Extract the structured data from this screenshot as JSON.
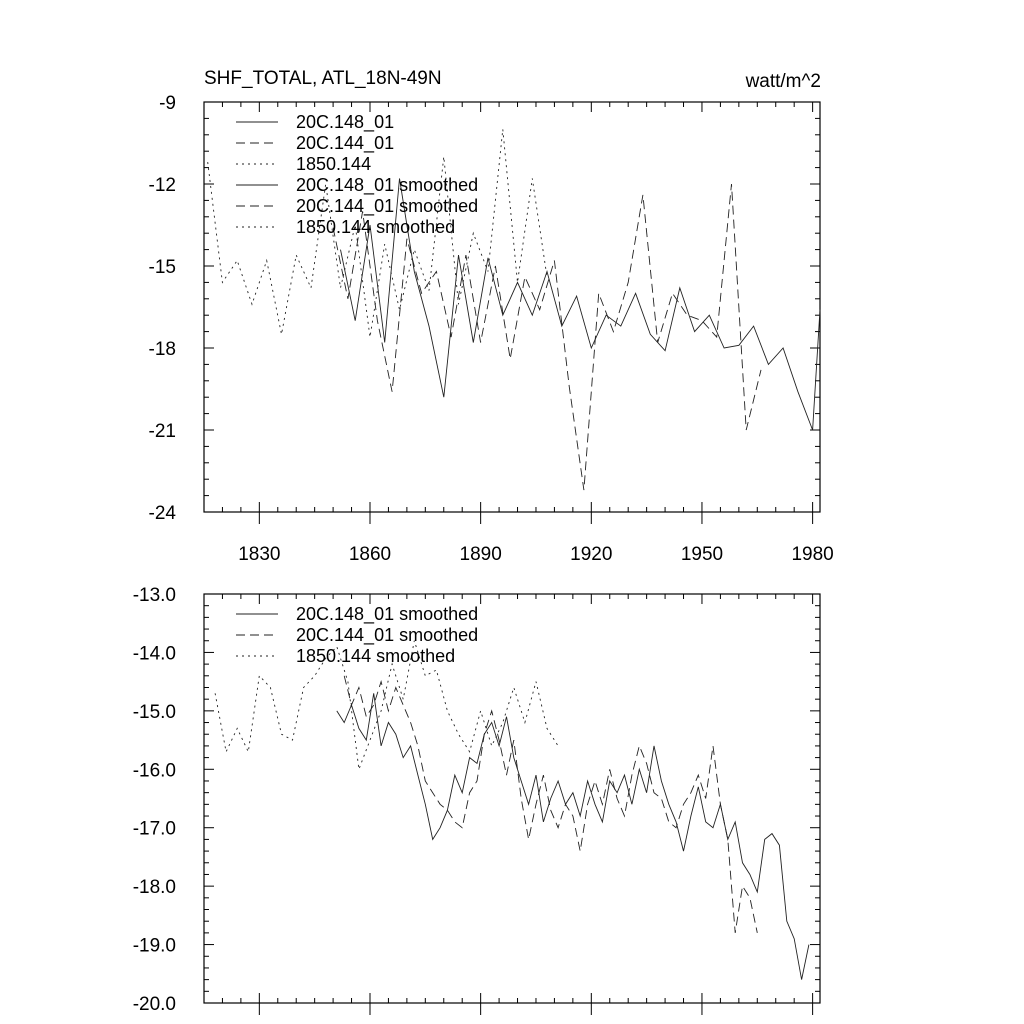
{
  "chart_data": [
    {
      "type": "line",
      "title": "SHF_TOTAL, ATL_18N-49N",
      "units": "watt/m^2",
      "xlim": [
        1815,
        1982
      ],
      "ylim": [
        -24,
        -9
      ],
      "x_ticks": [
        1830,
        1860,
        1890,
        1920,
        1950,
        1980
      ],
      "y_ticks": [
        -9,
        -12,
        -15,
        -18,
        -21,
        -24
      ],
      "x_tick_labels": [
        "1830",
        "1860",
        "1890",
        "1920",
        "1950",
        "1980"
      ],
      "y_tick_labels": [
        "-9",
        "-12",
        "-15",
        "-18",
        "-21",
        "-24"
      ],
      "legend": {
        "placement": "top-left",
        "entries": [
          "20C.148_01",
          "20C.144_01",
          "1850.144",
          "20C.148_01 smoothed",
          "20C.144_01 smoothed",
          "1850.144 smoothed"
        ]
      },
      "series": [
        {
          "name": "20C.148_01",
          "style": "solid",
          "x": [
            1852,
            1856,
            1860,
            1864,
            1868,
            1872,
            1876,
            1880,
            1884,
            1888,
            1892,
            1896,
            1900,
            1904,
            1908,
            1912,
            1916,
            1920,
            1924,
            1928,
            1932,
            1936,
            1940,
            1944,
            1948,
            1952,
            1956,
            1960,
            1964,
            1968,
            1972,
            1976,
            1980,
            1982
          ],
          "y": [
            -14.4,
            -17.0,
            -13.5,
            -17.8,
            -11.8,
            -15.2,
            -17.2,
            -19.8,
            -14.6,
            -17.8,
            -14.7,
            -16.8,
            -15.6,
            -16.8,
            -15.2,
            -17.2,
            -16.1,
            -18.0,
            -16.8,
            -17.2,
            -16.0,
            -17.5,
            -18.1,
            -15.8,
            -17.4,
            -16.8,
            -18.0,
            -17.9,
            -17.2,
            -18.6,
            -18.0,
            -19.6,
            -21.0,
            -16.6
          ]
        },
        {
          "name": "20C.144_01",
          "style": "dash",
          "x": [
            1850,
            1854,
            1858,
            1862,
            1866,
            1870,
            1874,
            1878,
            1882,
            1886,
            1890,
            1894,
            1898,
            1902,
            1906,
            1910,
            1914,
            1918,
            1922,
            1926,
            1930,
            1934,
            1938,
            1942,
            1946,
            1950,
            1954,
            1958,
            1962,
            1966
          ],
          "y": [
            -13.6,
            -16.2,
            -13.0,
            -17.0,
            -19.6,
            -14.0,
            -16.0,
            -15.2,
            -17.6,
            -14.6,
            -17.8,
            -15.0,
            -18.4,
            -15.4,
            -16.6,
            -14.8,
            -19.4,
            -23.2,
            -16.0,
            -17.4,
            -15.6,
            -12.4,
            -17.8,
            -16.0,
            -16.8,
            -17.0,
            -17.6,
            -12.0,
            -21.0,
            -18.8
          ]
        },
        {
          "name": "1850.144",
          "style": "dot",
          "x": [
            1816,
            1820,
            1824,
            1828,
            1832,
            1836,
            1840,
            1844,
            1848,
            1852,
            1856,
            1860,
            1864,
            1868,
            1872,
            1876,
            1880,
            1884,
            1888,
            1892,
            1896,
            1900,
            1904,
            1908
          ],
          "y": [
            -11.2,
            -15.6,
            -14.8,
            -16.4,
            -14.8,
            -17.5,
            -14.6,
            -15.8,
            -12.0,
            -15.8,
            -13.5,
            -17.6,
            -14.2,
            -16.6,
            -14.4,
            -15.9,
            -11.0,
            -16.4,
            -13.8,
            -15.2,
            -10.0,
            -15.6,
            -11.8,
            -15.4
          ]
        }
      ]
    },
    {
      "type": "line",
      "xlim": [
        1815,
        1982
      ],
      "ylim": [
        -20.0,
        -13.0
      ],
      "x_ticks": [
        1830,
        1860,
        1890,
        1920,
        1950,
        1980
      ],
      "y_ticks": [
        -13.0,
        -14.0,
        -15.0,
        -16.0,
        -17.0,
        -18.0,
        -19.0,
        -20.0
      ],
      "y_tick_labels": [
        "-13.0",
        "-14.0",
        "-15.0",
        "-16.0",
        "-17.0",
        "-18.0",
        "-19.0",
        "-20.0"
      ],
      "legend": {
        "placement": "top-left",
        "entries": [
          "20C.148_01 smoothed",
          "20C.144_01 smoothed",
          "1850.144 smoothed"
        ]
      },
      "series": [
        {
          "name": "20C.148_01 smoothed",
          "style": "solid",
          "x": [
            1851,
            1853,
            1855,
            1857,
            1859,
            1861,
            1863,
            1865,
            1867,
            1869,
            1871,
            1873,
            1875,
            1877,
            1879,
            1881,
            1883,
            1885,
            1887,
            1889,
            1891,
            1893,
            1895,
            1897,
            1899,
            1901,
            1903,
            1905,
            1907,
            1909,
            1911,
            1913,
            1915,
            1917,
            1919,
            1921,
            1923,
            1925,
            1927,
            1929,
            1931,
            1933,
            1935,
            1937,
            1939,
            1941,
            1943,
            1945,
            1947,
            1949,
            1951,
            1953,
            1955,
            1957,
            1959,
            1961,
            1963,
            1965,
            1967,
            1969,
            1971,
            1973,
            1975,
            1977,
            1979
          ],
          "y": [
            -15.0,
            -15.2,
            -14.9,
            -15.3,
            -15.5,
            -14.7,
            -15.6,
            -15.2,
            -15.4,
            -15.8,
            -15.6,
            -16.1,
            -16.6,
            -17.2,
            -17.0,
            -16.7,
            -16.1,
            -16.4,
            -15.8,
            -15.9,
            -15.4,
            -15.2,
            -15.6,
            -15.1,
            -15.8,
            -16.2,
            -16.6,
            -16.1,
            -16.9,
            -16.5,
            -16.2,
            -16.6,
            -16.4,
            -16.8,
            -16.2,
            -16.6,
            -16.9,
            -16.2,
            -16.4,
            -16.1,
            -16.6,
            -16.0,
            -16.4,
            -15.6,
            -16.2,
            -16.6,
            -16.9,
            -17.4,
            -16.8,
            -16.3,
            -16.9,
            -17.0,
            -16.6,
            -17.2,
            -16.9,
            -17.6,
            -17.8,
            -18.1,
            -17.2,
            -17.1,
            -17.3,
            -18.6,
            -18.9,
            -19.6,
            -19.0
          ]
        },
        {
          "name": "20C.144_01 smoothed",
          "style": "dash",
          "x": [
            1853,
            1855,
            1857,
            1859,
            1861,
            1863,
            1865,
            1867,
            1869,
            1871,
            1873,
            1875,
            1877,
            1879,
            1881,
            1883,
            1885,
            1887,
            1889,
            1891,
            1893,
            1895,
            1897,
            1899,
            1901,
            1903,
            1905,
            1907,
            1909,
            1911,
            1913,
            1915,
            1917,
            1919,
            1921,
            1923,
            1925,
            1927,
            1929,
            1931,
            1933,
            1935,
            1937,
            1939,
            1941,
            1943,
            1945,
            1947,
            1949,
            1951,
            1953,
            1955,
            1957,
            1959,
            1961,
            1963,
            1965
          ],
          "y": [
            -14.4,
            -14.9,
            -14.6,
            -15.1,
            -14.9,
            -14.5,
            -15.0,
            -14.6,
            -14.9,
            -15.2,
            -15.6,
            -16.2,
            -16.4,
            -16.6,
            -16.7,
            -16.9,
            -17.0,
            -16.4,
            -16.2,
            -15.4,
            -15.0,
            -15.5,
            -16.1,
            -15.5,
            -16.5,
            -17.2,
            -16.6,
            -16.1,
            -16.7,
            -17.0,
            -16.6,
            -16.8,
            -17.4,
            -16.6,
            -16.2,
            -16.6,
            -16.0,
            -16.5,
            -16.8,
            -16.1,
            -15.6,
            -15.9,
            -16.4,
            -16.5,
            -16.9,
            -17.0,
            -16.6,
            -16.4,
            -16.1,
            -16.5,
            -15.6,
            -16.6,
            -17.2,
            -18.8,
            -18.0,
            -18.2,
            -18.8
          ]
        },
        {
          "name": "1850.144 smoothed",
          "style": "dot",
          "x": [
            1818,
            1821,
            1824,
            1827,
            1830,
            1833,
            1836,
            1839,
            1842,
            1845,
            1848,
            1851,
            1854,
            1857,
            1860,
            1863,
            1866,
            1869,
            1872,
            1875,
            1878,
            1881,
            1884,
            1887,
            1890,
            1893,
            1896,
            1899,
            1902,
            1905,
            1908,
            1911
          ],
          "y": [
            -14.7,
            -15.7,
            -15.3,
            -15.7,
            -14.4,
            -14.6,
            -15.4,
            -15.5,
            -14.6,
            -14.4,
            -14.1,
            -13.9,
            -14.5,
            -16.0,
            -15.5,
            -15.0,
            -14.2,
            -14.8,
            -13.8,
            -14.4,
            -14.3,
            -15.0,
            -15.4,
            -15.7,
            -15.0,
            -15.6,
            -15.2,
            -14.6,
            -15.2,
            -14.5,
            -15.3,
            -15.6
          ]
        }
      ]
    }
  ]
}
